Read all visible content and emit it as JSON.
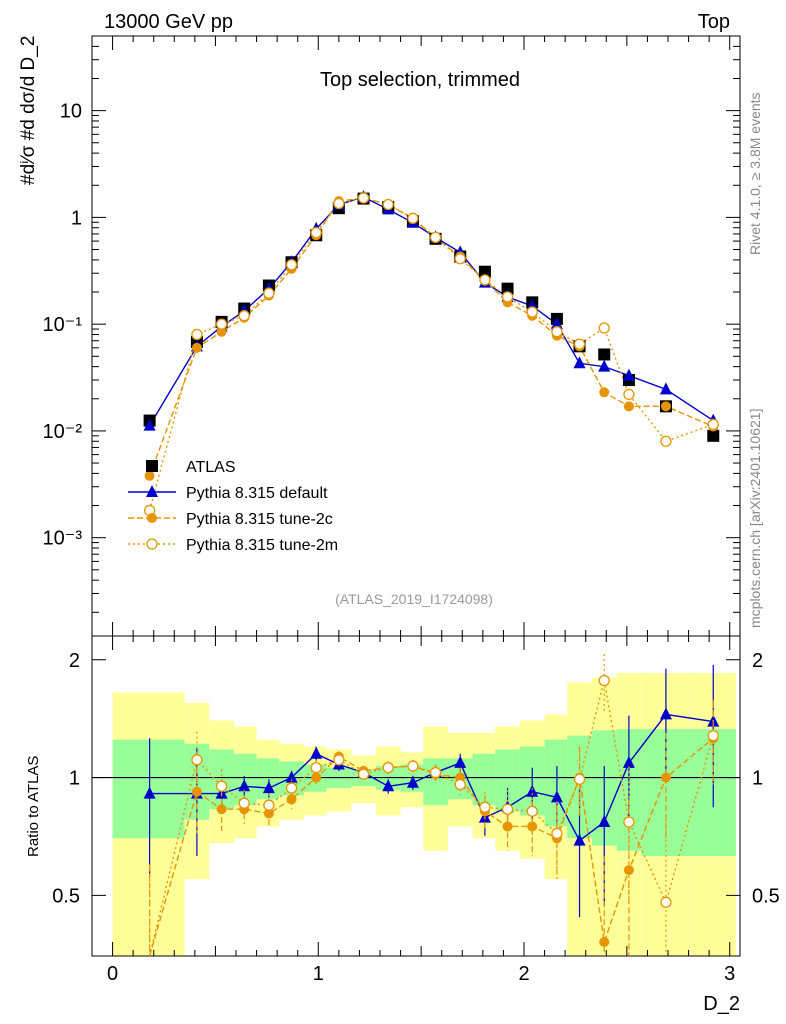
{
  "header": {
    "left": "13000 GeV pp",
    "right": "Top"
  },
  "side_labels": {
    "rivet": "Rivet 4.1.0, ≥ 3.8M events",
    "mcplots": "mcplots.cern.ch [arXiv:2401.10621]"
  },
  "chart_data": [
    {
      "type": "line",
      "title": "Top selection, trimmed",
      "analysis_id": "(ATLAS_2019_I1724098)",
      "ylabel": "#dⁱ⁄σ #d dσ/d D_2",
      "yscale": "log",
      "ylim": [
        0.00012,
        50
      ],
      "xlim": [
        -0.1,
        3.05
      ],
      "y_ticks": [
        {
          "value": 0.001,
          "label": "10⁻³"
        },
        {
          "value": 0.01,
          "label": "10⁻²"
        },
        {
          "value": 0.1,
          "label": "10⁻¹"
        },
        {
          "value": 1,
          "label": "1"
        },
        {
          "value": 10,
          "label": "10"
        }
      ],
      "legend": [
        {
          "label": "ATLAS",
          "series": "ATLAS"
        },
        {
          "label": "Pythia 8.315 default",
          "series": "default"
        },
        {
          "label": "Pythia 8.315 tune-2c",
          "series": "tune2c"
        },
        {
          "label": "Pythia 8.315 tune-2m",
          "series": "tune2m"
        }
      ],
      "bins": [
        0.0,
        0.35,
        0.47,
        0.59,
        0.7,
        0.81,
        0.93,
        1.04,
        1.16,
        1.28,
        1.4,
        1.51,
        1.63,
        1.75,
        1.86,
        1.98,
        2.1,
        2.21,
        2.33,
        2.45,
        2.57,
        2.81,
        3.03
      ],
      "series": [
        {
          "name": "ATLAS",
          "color": "#000000",
          "marker": "square",
          "x": [
            0.18,
            0.41,
            0.53,
            0.64,
            0.76,
            0.87,
            0.99,
            1.1,
            1.22,
            1.34,
            1.46,
            1.57,
            1.69,
            1.81,
            1.92,
            2.04,
            2.16,
            2.27,
            2.39,
            2.51,
            2.69,
            2.92
          ],
          "y": [
            0.0125,
            0.068,
            0.105,
            0.14,
            0.23,
            0.38,
            0.68,
            1.22,
            1.5,
            1.25,
            0.92,
            0.63,
            0.43,
            0.31,
            0.215,
            0.16,
            0.112,
            0.062,
            0.052,
            0.03,
            0.017,
            0.009
          ]
        },
        {
          "name": "Pythia 8.315 default",
          "color": "#0000cc",
          "marker": "triangle",
          "dash": "",
          "x": [
            0.18,
            0.41,
            0.53,
            0.64,
            0.76,
            0.87,
            0.99,
            1.1,
            1.22,
            1.34,
            1.46,
            1.57,
            1.69,
            1.81,
            1.92,
            2.04,
            2.16,
            2.27,
            2.39,
            2.51,
            2.69,
            2.92
          ],
          "y": [
            0.0112,
            0.062,
            0.095,
            0.133,
            0.215,
            0.38,
            0.78,
            1.32,
            1.55,
            1.19,
            0.89,
            0.65,
            0.47,
            0.245,
            0.18,
            0.148,
            0.1,
            0.043,
            0.04,
            0.033,
            0.0245,
            0.0125
          ],
          "ratio": [
            0.91,
            0.91,
            0.91,
            0.95,
            0.94,
            1.0,
            1.15,
            1.08,
            1.03,
            0.95,
            0.97,
            1.03,
            1.09,
            0.79,
            0.84,
            0.92,
            0.89,
            0.69,
            0.77,
            1.09,
            1.45,
            1.39
          ],
          "ratio_err": [
            0.35,
            0.28,
            0.08,
            0.06,
            0.05,
            0.04,
            0.05,
            0.04,
            0.03,
            0.04,
            0.04,
            0.05,
            0.06,
            0.08,
            0.1,
            0.14,
            0.18,
            0.25,
            0.3,
            0.35,
            0.45,
            0.55
          ]
        },
        {
          "name": "Pythia 8.315 tune-2c",
          "color": "#e69500",
          "marker": "circle",
          "dash": "6,3",
          "x": [
            0.18,
            0.41,
            0.53,
            0.64,
            0.76,
            0.87,
            0.99,
            1.1,
            1.22,
            1.34,
            1.46,
            1.57,
            1.69,
            1.81,
            1.92,
            2.04,
            2.16,
            2.27,
            2.39,
            2.51,
            2.69,
            2.92
          ],
          "y": [
            0.0038,
            0.06,
            0.085,
            0.115,
            0.185,
            0.33,
            0.68,
            1.42,
            1.52,
            1.32,
            0.98,
            0.64,
            0.43,
            0.255,
            0.16,
            0.12,
            0.078,
            0.062,
            0.023,
            0.017,
            0.017,
            0.011
          ],
          "ratio": [
            0.3,
            0.92,
            0.83,
            0.83,
            0.81,
            0.88,
            1.0,
            1.13,
            1.04,
            1.06,
            1.07,
            1.02,
            1.0,
            0.82,
            0.75,
            0.75,
            0.7,
            1.0,
            0.38,
            0.58,
            1.0,
            1.26
          ],
          "ratio_err": [
            0.3,
            0.2,
            0.1,
            0.07,
            0.06,
            0.05,
            0.05,
            0.04,
            0.03,
            0.04,
            0.04,
            0.05,
            0.06,
            0.08,
            0.1,
            0.12,
            0.15,
            0.2,
            0.25,
            0.3,
            0.3,
            0.3
          ]
        },
        {
          "name": "Pythia 8.315 tune-2m",
          "color": "#e69500",
          "marker": "open-circle",
          "dash": "2,3",
          "x": [
            0.18,
            0.41,
            0.53,
            0.64,
            0.76,
            0.87,
            0.99,
            1.1,
            1.22,
            1.34,
            1.46,
            1.57,
            1.69,
            1.81,
            1.92,
            2.04,
            2.16,
            2.27,
            2.39,
            2.51,
            2.69,
            2.92
          ],
          "y": [
            0.0018,
            0.08,
            0.1,
            0.12,
            0.195,
            0.36,
            0.72,
            1.35,
            1.52,
            1.32,
            0.98,
            0.65,
            0.41,
            0.26,
            0.18,
            0.13,
            0.085,
            0.065,
            0.092,
            0.022,
            0.008,
            0.0115
          ],
          "ratio": [
            0.3,
            1.11,
            0.95,
            0.86,
            0.85,
            0.94,
            1.06,
            1.11,
            1.02,
            1.06,
            1.07,
            1.03,
            0.96,
            0.84,
            0.83,
            0.82,
            0.72,
            0.99,
            1.77,
            0.77,
            0.48,
            1.28
          ],
          "ratio_err": [
            0.3,
            0.2,
            0.1,
            0.07,
            0.06,
            0.05,
            0.05,
            0.04,
            0.03,
            0.04,
            0.04,
            0.05,
            0.06,
            0.08,
            0.1,
            0.12,
            0.15,
            0.2,
            0.3,
            0.3,
            0.3,
            0.3
          ]
        }
      ]
    },
    {
      "type": "line",
      "ylabel": "Ratio to ATLAS",
      "xlabel": "D_2",
      "yscale": "log",
      "ylim": [
        0.35,
        2.3
      ],
      "xlim": [
        -0.1,
        3.05
      ],
      "y_ticks": [
        {
          "value": 0.5,
          "label": "0.5"
        },
        {
          "value": 1,
          "label": "1"
        },
        {
          "value": 2,
          "label": "2"
        }
      ],
      "x_ticks": [
        {
          "value": 0,
          "label": "0"
        },
        {
          "value": 1,
          "label": "1"
        },
        {
          "value": 2,
          "label": "2"
        },
        {
          "value": 3,
          "label": "3"
        }
      ],
      "band_inner": [
        [
          0.7,
          1.25
        ],
        [
          0.78,
          1.22
        ],
        [
          0.83,
          1.18
        ],
        [
          0.85,
          1.15
        ],
        [
          0.88,
          1.12
        ],
        [
          0.9,
          1.1
        ],
        [
          0.92,
          1.08
        ],
        [
          0.94,
          1.06
        ],
        [
          0.95,
          1.05
        ],
        [
          0.93,
          1.07
        ],
        [
          0.92,
          1.08
        ],
        [
          0.85,
          1.12
        ],
        [
          0.88,
          1.12
        ],
        [
          0.85,
          1.15
        ],
        [
          0.82,
          1.18
        ],
        [
          0.8,
          1.2
        ],
        [
          0.75,
          1.25
        ],
        [
          0.7,
          1.28
        ],
        [
          0.67,
          1.32
        ],
        [
          0.65,
          1.33
        ],
        [
          0.63,
          1.33
        ],
        [
          0.63,
          1.33
        ]
      ],
      "band_outer": [
        [
          0.3,
          1.65
        ],
        [
          0.55,
          1.55
        ],
        [
          0.68,
          1.4
        ],
        [
          0.7,
          1.35
        ],
        [
          0.75,
          1.25
        ],
        [
          0.78,
          1.22
        ],
        [
          0.8,
          1.2
        ],
        [
          0.82,
          1.18
        ],
        [
          0.86,
          1.14
        ],
        [
          0.8,
          1.2
        ],
        [
          0.84,
          1.16
        ],
        [
          0.65,
          1.35
        ],
        [
          0.75,
          1.3
        ],
        [
          0.7,
          1.3
        ],
        [
          0.65,
          1.35
        ],
        [
          0.62,
          1.4
        ],
        [
          0.55,
          1.45
        ],
        [
          0.3,
          1.75
        ],
        [
          0.3,
          1.8
        ],
        [
          0.3,
          1.85
        ],
        [
          0.3,
          1.85
        ],
        [
          0.3,
          1.85
        ]
      ]
    }
  ]
}
